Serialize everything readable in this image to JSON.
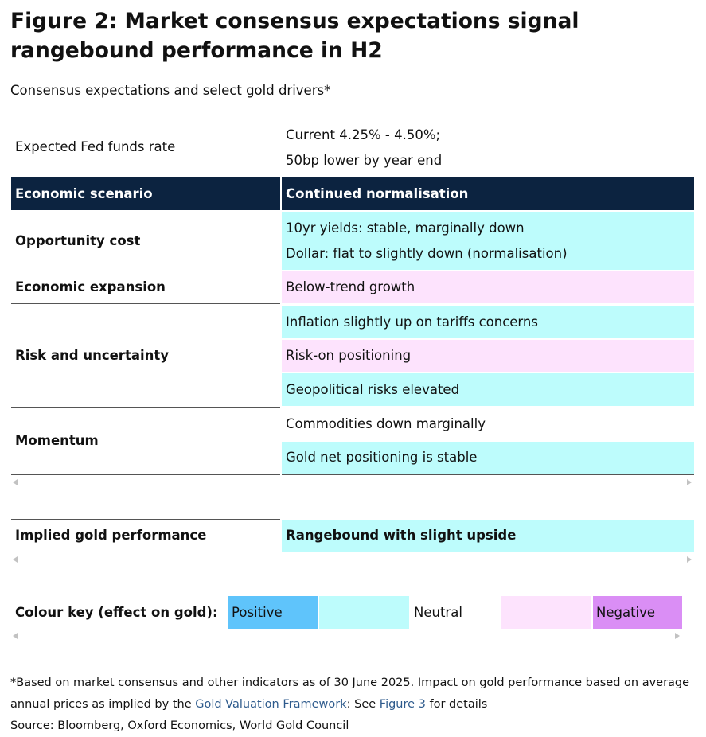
{
  "figure": {
    "title": "Figure 2: Market consensus expectations signal rangebound performance in H2",
    "subtitle": "Consensus expectations and select gold drivers*"
  },
  "fed": {
    "label": "Expected Fed funds rate",
    "line1": "Current 4.25% - 4.50%;",
    "line2": "50bp lower by year end"
  },
  "header": {
    "left": "Economic scenario",
    "right": "Continued normalisation"
  },
  "rows": {
    "opportunity_cost": {
      "label": "Opportunity cost",
      "line1": "10yr yields: stable, marginally down",
      "line2": "Dollar: flat to slightly down (normalisation)"
    },
    "economic_expansion": {
      "label": "Economic expansion",
      "line1": "Below-trend growth"
    },
    "risk_uncertainty": {
      "label": "Risk and uncertainty",
      "line1": "Inflation slightly up on tariffs concerns",
      "line2": "Risk-on positioning",
      "line3": "Geopolitical risks elevated"
    },
    "momentum": {
      "label": "Momentum",
      "line1": "Commodities down marginally",
      "line2": "Gold net positioning is stable"
    }
  },
  "implied": {
    "label": "Implied gold performance",
    "value": "Rangebound with slight upside"
  },
  "colour_key": {
    "label": "Colour key (effect on gold):",
    "positive": "Positive",
    "neutral": "Neutral",
    "negative": "Negative"
  },
  "footnote": {
    "line1": "*Based on market consensus and other indicators as of 30 June 2025. Impact on gold performance based on average",
    "line2_prefix": "annual prices as implied by the ",
    "link1": "Gold Valuation Framework",
    "line2_mid": ": See ",
    "link2": "Figure 3",
    "line2_suffix": " for details",
    "source": "Source: Bloomberg, Oxford Economics, World Gold Council"
  },
  "colors": {
    "header_bg": "#0c2340",
    "neutral": "#bdfcfc",
    "slightly_negative": "#fde3fd",
    "positive": "#5fc4fb",
    "negative": "#da8ef5"
  }
}
